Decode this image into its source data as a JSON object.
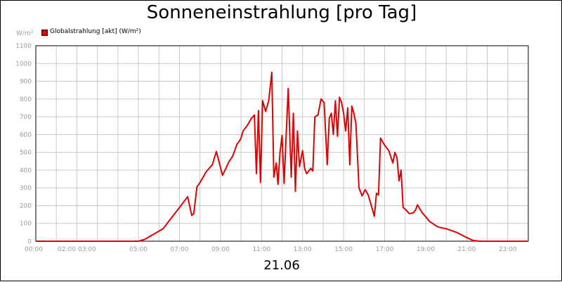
{
  "title": "Sonneneinstrahlung [pro Tag]",
  "unit_label": "W/m²",
  "date_label": "21.06",
  "colors": {
    "series": "#e00000",
    "grid": "#c8c8c8",
    "tick_text": "#9a9a9a"
  },
  "chart_data": {
    "type": "line",
    "title": "Sonneneinstrahlung [pro Tag]",
    "xlabel": "21.06",
    "ylabel": "W/m²",
    "ylim": [
      0,
      1100
    ],
    "xlim": [
      0,
      24
    ],
    "grid": true,
    "legend_position": "top-left",
    "y_ticks": [
      0,
      100,
      200,
      300,
      400,
      500,
      600,
      700,
      800,
      900,
      1000,
      1100
    ],
    "x_ticks": [
      {
        "t": 0,
        "label": "00:00"
      },
      {
        "t": 2,
        "label": "02:00 03:00"
      },
      {
        "t": 5,
        "label": "05:00"
      },
      {
        "t": 7,
        "label": "07:00"
      },
      {
        "t": 9,
        "label": "09:00"
      },
      {
        "t": 11,
        "label": "11:00"
      },
      {
        "t": 13,
        "label": "13:00"
      },
      {
        "t": 15,
        "label": "15:00"
      },
      {
        "t": 17,
        "label": "17:00"
      },
      {
        "t": 19,
        "label": "19:00"
      },
      {
        "t": 21,
        "label": "21:00"
      },
      {
        "t": 23,
        "label": "23:00"
      }
    ],
    "series": [
      {
        "name": "Globalstrahlung [akt] (W/m²)",
        "x": [
          0,
          5.0,
          5.3,
          5.6,
          5.9,
          6.2,
          6.6,
          7.0,
          7.4,
          7.6,
          7.7,
          7.85,
          8.0,
          8.3,
          8.6,
          8.8,
          9.1,
          9.4,
          9.6,
          9.8,
          9.9,
          10.0,
          10.1,
          10.3,
          10.5,
          10.65,
          10.75,
          10.85,
          10.95,
          11.05,
          11.2,
          11.35,
          11.5,
          11.6,
          11.72,
          11.8,
          11.9,
          12.0,
          12.1,
          12.2,
          12.3,
          12.45,
          12.55,
          12.65,
          12.75,
          12.85,
          13.0,
          13.1,
          13.2,
          13.3,
          13.4,
          13.5,
          13.6,
          13.75,
          13.9,
          14.05,
          14.2,
          14.3,
          14.4,
          14.5,
          14.6,
          14.7,
          14.8,
          14.9,
          15.0,
          15.1,
          15.2,
          15.3,
          15.4,
          15.5,
          15.6,
          15.75,
          15.9,
          16.05,
          16.2,
          16.35,
          16.5,
          16.6,
          16.7,
          16.8,
          16.9,
          17.0,
          17.2,
          17.4,
          17.5,
          17.6,
          17.7,
          17.8,
          17.9,
          18.05,
          18.2,
          18.4,
          18.5,
          18.6,
          18.8,
          19.2,
          19.6,
          20.0,
          20.5,
          21.0,
          21.3,
          21.6,
          24.0
        ],
        "y": [
          0,
          0,
          10,
          30,
          50,
          70,
          130,
          190,
          250,
          145,
          155,
          305,
          330,
          390,
          430,
          505,
          370,
          445,
          480,
          545,
          560,
          580,
          620,
          650,
          690,
          710,
          380,
          735,
          330,
          790,
          730,
          790,
          950,
          360,
          440,
          320,
          500,
          595,
          325,
          590,
          860,
          360,
          720,
          280,
          620,
          420,
          510,
          410,
          380,
          395,
          410,
          395,
          700,
          710,
          800,
          780,
          430,
          690,
          720,
          600,
          790,
          590,
          810,
          780,
          720,
          620,
          750,
          430,
          760,
          720,
          660,
          300,
          255,
          290,
          260,
          200,
          140,
          270,
          260,
          580,
          560,
          540,
          510,
          440,
          500,
          470,
          340,
          400,
          190,
          175,
          155,
          160,
          175,
          205,
          165,
          110,
          80,
          70,
          50,
          20,
          5,
          0,
          0
        ]
      }
    ]
  }
}
